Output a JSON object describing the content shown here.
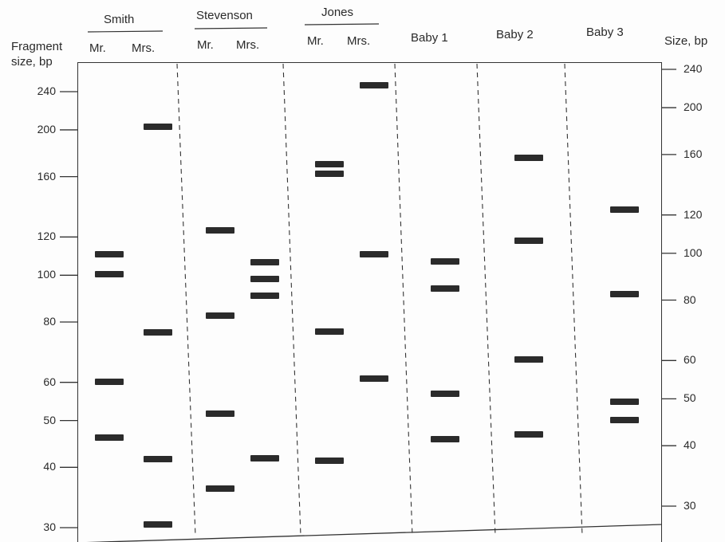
{
  "left_axis": {
    "title_line1": "Fragment",
    "title_line2": "size, bp",
    "ticks": [
      {
        "label": "240",
        "value": 240
      },
      {
        "label": "200",
        "value": 200
      },
      {
        "label": "160",
        "value": 160
      },
      {
        "label": "120",
        "value": 120
      },
      {
        "label": "100",
        "value": 100
      },
      {
        "label": "80",
        "value": 80
      },
      {
        "label": "60",
        "value": 60
      },
      {
        "label": "50",
        "value": 50
      },
      {
        "label": "40",
        "value": 40
      },
      {
        "label": "30",
        "value": 30
      }
    ]
  },
  "right_axis": {
    "title": "Size, bp",
    "ticks": [
      {
        "label": "240",
        "value": 240
      },
      {
        "label": "200",
        "value": 200
      },
      {
        "label": "160",
        "value": 160
      },
      {
        "label": "120",
        "value": 120
      },
      {
        "label": "100",
        "value": 100
      },
      {
        "label": "80",
        "value": 80
      },
      {
        "label": "60",
        "value": 60
      },
      {
        "label": "50",
        "value": 50
      },
      {
        "label": "40",
        "value": 40
      },
      {
        "label": "30",
        "value": 30
      }
    ]
  },
  "families": [
    {
      "name": "Smith"
    },
    {
      "name": "Stevenson"
    },
    {
      "name": "Jones"
    }
  ],
  "lanes": [
    {
      "label": "Mr.",
      "bands": [
        110,
        100,
        60,
        46
      ]
    },
    {
      "label": "Mrs.",
      "bands": [
        200,
        75,
        41,
        30
      ]
    },
    {
      "label": "Mr.",
      "bands": [
        120,
        80,
        50,
        35
      ]
    },
    {
      "label": "Mrs.",
      "bands": [
        102,
        94,
        87,
        40
      ]
    },
    {
      "label": "Mr.",
      "bands": [
        160,
        153,
        72,
        39
      ]
    },
    {
      "label": "Mrs.",
      "bands": [
        231,
        103,
        57
      ]
    },
    {
      "label": "Baby 1",
      "bands": [
        98,
        86,
        52,
        42
      ]
    },
    {
      "label": "Baby 2",
      "bands": [
        157,
        106,
        60,
        42
      ]
    },
    {
      "label": "Baby 3",
      "bands": [
        120,
        80,
        48,
        44
      ]
    }
  ]
}
